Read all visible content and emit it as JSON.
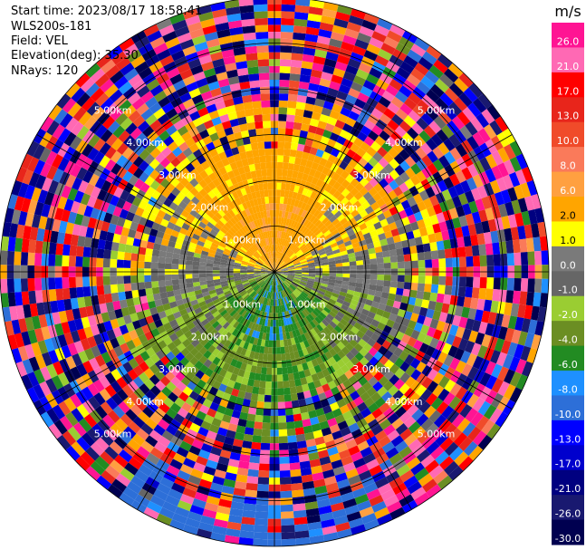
{
  "header": {
    "start_time": "Start time: 2023/08/17 18:58:41",
    "instrument": "WLS200s-181",
    "field": "Field: VEL",
    "elevation": "Elevation(deg): 35.30",
    "nrays": "NRays: 120"
  },
  "chart_data": {
    "type": "heatmap",
    "projection": "polar-ppi",
    "field": "VEL",
    "units": "m/s",
    "n_rays": 120,
    "max_range_km": 6.0,
    "range_rings_km": [
      1.0,
      2.0,
      3.0,
      4.0,
      5.0
    ],
    "ring_labels": [
      "1.00km",
      "2.00km",
      "3.00km",
      "4.00km",
      "5.00km"
    ],
    "spoke_angles_deg": [
      0,
      30,
      60,
      90,
      120,
      150,
      180,
      210,
      240,
      270,
      300,
      330
    ],
    "north_sector_wind": "positive (receding, yellow/orange)",
    "south_sector_wind": "negative (approaching, green)",
    "colorbar": {
      "unit_label": "m/s",
      "tick_labels": [
        "26.0",
        "21.0",
        "17.0",
        "13.0",
        "10.0",
        "8.0",
        "6.0",
        "2.0",
        "1.0",
        "0.0",
        "-1.0",
        "-2.0",
        "-4.0",
        "-6.0",
        "-8.0",
        "-10.0",
        "-13.0",
        "-17.0",
        "-21.0",
        "-26.0",
        "-30.0"
      ],
      "bands": [
        {
          "min": 26,
          "max": 30,
          "color": "#ff1493"
        },
        {
          "min": 21,
          "max": 26,
          "color": "#ff69b4"
        },
        {
          "min": 17,
          "max": 21,
          "color": "#ff0000"
        },
        {
          "min": 13,
          "max": 17,
          "color": "#e8251b"
        },
        {
          "min": 10,
          "max": 13,
          "color": "#f04b2a"
        },
        {
          "min": 8,
          "max": 10,
          "color": "#fa7a5a"
        },
        {
          "min": 6,
          "max": 8,
          "color": "#ffa040"
        },
        {
          "min": 2,
          "max": 6,
          "color": "#ffa500"
        },
        {
          "min": 1,
          "max": 2,
          "color": "#ffff00"
        },
        {
          "min": 0,
          "max": 1,
          "color": "#7a7a7a"
        },
        {
          "min": -1,
          "max": 0,
          "color": "#666666"
        },
        {
          "min": -2,
          "max": -1,
          "color": "#9acd32"
        },
        {
          "min": -4,
          "max": -2,
          "color": "#6b8e23"
        },
        {
          "min": -6,
          "max": -4,
          "color": "#228b22"
        },
        {
          "min": -8,
          "max": -6,
          "color": "#1e90ff"
        },
        {
          "min": -10,
          "max": -8,
          "color": "#2d6fd8"
        },
        {
          "min": -13,
          "max": -10,
          "color": "#0000ff"
        },
        {
          "min": -17,
          "max": -13,
          "color": "#0000cd"
        },
        {
          "min": -21,
          "max": -17,
          "color": "#000080"
        },
        {
          "min": -26,
          "max": -21,
          "color": "#191970"
        },
        {
          "min": -30,
          "max": -26,
          "color": "#000050"
        }
      ],
      "label_color_light": "#ffffff",
      "label_color_dark": "#000000"
    },
    "title": ""
  }
}
